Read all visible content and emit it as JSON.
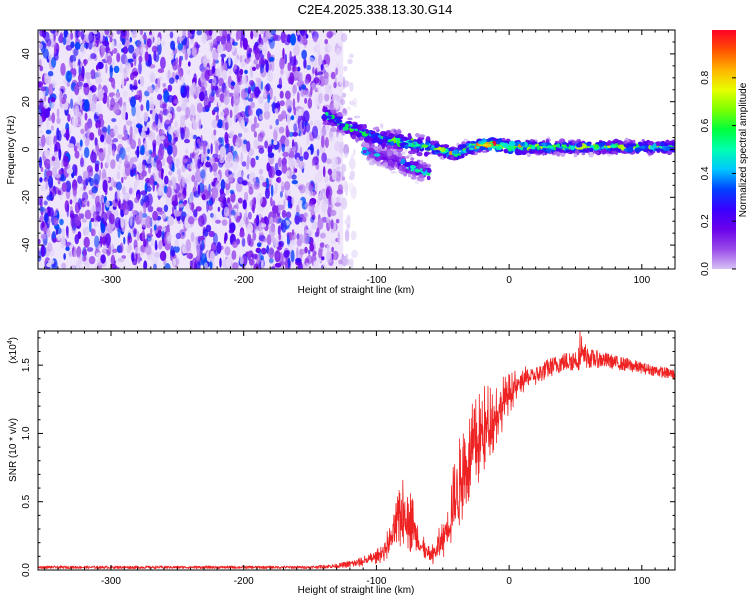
{
  "title": "C2E4.2025.338.13.30.G14",
  "chart_data": [
    {
      "type": "heatmap",
      "name": "spectrogram",
      "xlabel": "Height of straight line (km)",
      "ylabel": "Frequency (Hz)",
      "xlim": [
        -355,
        125
      ],
      "ylim": [
        -50,
        50
      ],
      "xticks": [
        -300,
        -200,
        -100,
        0,
        100
      ],
      "yticks": [
        -40,
        -20,
        0,
        20,
        40
      ],
      "colorbar": {
        "label": "Normalized spectral amplitude",
        "range": [
          0.0,
          1.0
        ],
        "ticks": [
          "0.0",
          "0.2",
          "0.4",
          "0.6",
          "0.8"
        ],
        "tick_values": [
          0.0,
          0.2,
          0.4,
          0.6,
          0.8
        ],
        "colormap": [
          "#ffffff",
          "#d7c2f5",
          "#9a4bea",
          "#6a00ea",
          "#3a00ff",
          "#0040ff",
          "#00c8ff",
          "#00ffb0",
          "#00ff3c",
          "#7cff00",
          "#e8ff00",
          "#ffb400",
          "#ff5000",
          "#ff0028"
        ]
      },
      "noise_region": {
        "x": [
          -355,
          -125
        ],
        "y": [
          -50,
          50
        ],
        "amplitude": [
          0.05,
          0.4
        ]
      },
      "signal_track": {
        "x": [
          -140,
          -120,
          -100,
          -80,
          -60,
          -40,
          -30,
          -20,
          -10,
          0,
          20,
          50,
          80,
          125
        ],
        "y": [
          15,
          9,
          5,
          3,
          1,
          -2,
          1,
          2,
          2,
          1,
          1,
          1,
          1,
          1
        ],
        "amplitude": [
          0.35,
          0.4,
          0.4,
          0.45,
          0.5,
          0.55,
          0.6,
          0.75,
          0.8,
          0.7,
          0.55,
          0.5,
          0.5,
          0.5
        ]
      },
      "secondary_track": {
        "x": [
          -110,
          -90,
          -75,
          -60
        ],
        "y": [
          0,
          -4,
          -7,
          -10
        ],
        "amplitude": [
          0.2,
          0.25,
          0.3,
          0.3
        ]
      }
    },
    {
      "type": "line",
      "name": "snr",
      "xlabel": "Height of straight line (km)",
      "ylabel": "SNR (10 * v/v)",
      "scale_label": "(x10",
      "scale_exponent": "4",
      "scale_close": ")",
      "xlim": [
        -355,
        125
      ],
      "ylim": [
        0,
        1.75
      ],
      "xticks": [
        -300,
        -200,
        -100,
        0,
        100
      ],
      "yticks": [
        0.0,
        0.5,
        1.0,
        1.5
      ],
      "ytick_labels": [
        "0.0",
        "0.5",
        "1.0",
        "1.5"
      ],
      "color": "#ee2222",
      "series": [
        {
          "name": "SNR",
          "x": [
            -355,
            -300,
            -250,
            -200,
            -150,
            -130,
            -115,
            -100,
            -95,
            -90,
            -85,
            -82,
            -78,
            -72,
            -66,
            -60,
            -55,
            -50,
            -45,
            -40,
            -35,
            -30,
            -25,
            -20,
            -15,
            -10,
            -5,
            0,
            5,
            10,
            15,
            20,
            25,
            30,
            35,
            40,
            45,
            50,
            55,
            60,
            70,
            80,
            90,
            100,
            110,
            125
          ],
          "y": [
            0.02,
            0.02,
            0.02,
            0.02,
            0.02,
            0.03,
            0.05,
            0.09,
            0.13,
            0.2,
            0.3,
            0.38,
            0.4,
            0.3,
            0.16,
            0.1,
            0.13,
            0.22,
            0.35,
            0.52,
            0.68,
            0.78,
            0.88,
            0.98,
            1.05,
            1.12,
            1.2,
            1.28,
            1.33,
            1.38,
            1.4,
            1.42,
            1.45,
            1.48,
            1.5,
            1.52,
            1.53,
            1.54,
            1.56,
            1.55,
            1.54,
            1.52,
            1.5,
            1.48,
            1.46,
            1.43
          ],
          "noise": [
            0.01,
            0.01,
            0.01,
            0.01,
            0.01,
            0.015,
            0.03,
            0.05,
            0.08,
            0.12,
            0.2,
            0.26,
            0.28,
            0.2,
            0.1,
            0.06,
            0.1,
            0.16,
            0.25,
            0.32,
            0.35,
            0.36,
            0.36,
            0.34,
            0.3,
            0.25,
            0.2,
            0.15,
            0.12,
            0.1,
            0.08,
            0.07,
            0.07,
            0.07,
            0.07,
            0.07,
            0.07,
            0.08,
            0.09,
            0.07,
            0.06,
            0.05,
            0.05,
            0.04,
            0.04,
            0.04
          ]
        }
      ]
    }
  ]
}
